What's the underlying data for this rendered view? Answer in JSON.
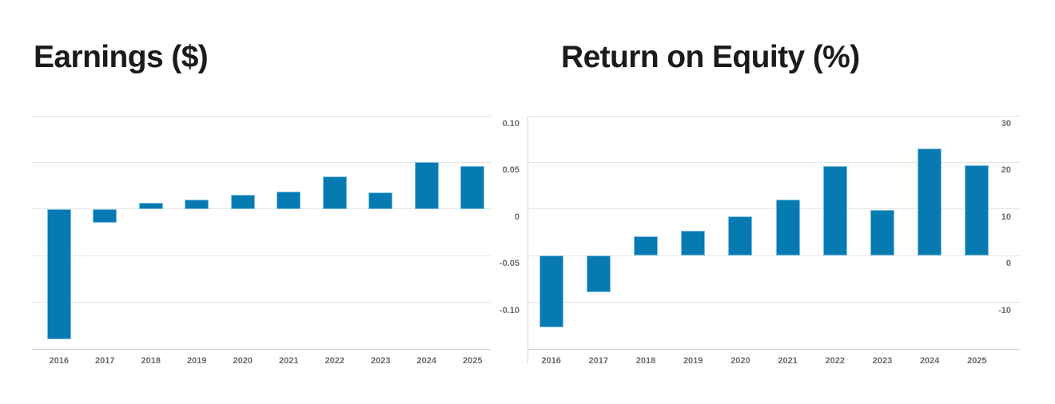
{
  "page": {
    "background": "#ffffff"
  },
  "colors": {
    "bar_fill": "#077ab2",
    "bar_border": "#7fc0e0",
    "gridline": "#e4e4e4",
    "axis_line": "#d2d2d2",
    "tick_label": "#6b6b6b",
    "title_text": "#1b1b1b"
  },
  "chart_data": [
    {
      "type": "bar",
      "title": "Earnings ($)",
      "categories": [
        "2016",
        "2017",
        "2018",
        "2019",
        "2020",
        "2021",
        "2022",
        "2023",
        "2024",
        "2025"
      ],
      "values": [
        -0.14,
        -0.015,
        0.007,
        0.01,
        0.015,
        0.019,
        0.035,
        0.018,
        0.05,
        0.046
      ],
      "ylim": [
        -0.15,
        0.1
      ],
      "yticks": [
        0.1,
        0.05,
        0,
        -0.05,
        -0.1
      ],
      "ytick_labels": [
        "0.10",
        "0.05",
        "0",
        "-0.05",
        "-0.10"
      ],
      "axis_side": "right",
      "grid": true,
      "legend": "none",
      "bar_color": "#077ab2"
    },
    {
      "type": "bar",
      "title": "Return on Equity (%)",
      "categories": [
        "2016",
        "2017",
        "2018",
        "2019",
        "2020",
        "2021",
        "2022",
        "2023",
        "2024",
        "2025"
      ],
      "values": [
        -15.4,
        -7.9,
        4.2,
        5.4,
        8.5,
        12,
        19.2,
        9.8,
        23,
        19.4
      ],
      "ylim": [
        -20,
        30
      ],
      "yticks": [
        30,
        20,
        10,
        0,
        -10
      ],
      "ytick_labels": [
        "30",
        "20",
        "10",
        "0",
        "-10"
      ],
      "axis_side": "right",
      "grid": true,
      "legend": "none",
      "bar_color": "#077ab2"
    }
  ]
}
